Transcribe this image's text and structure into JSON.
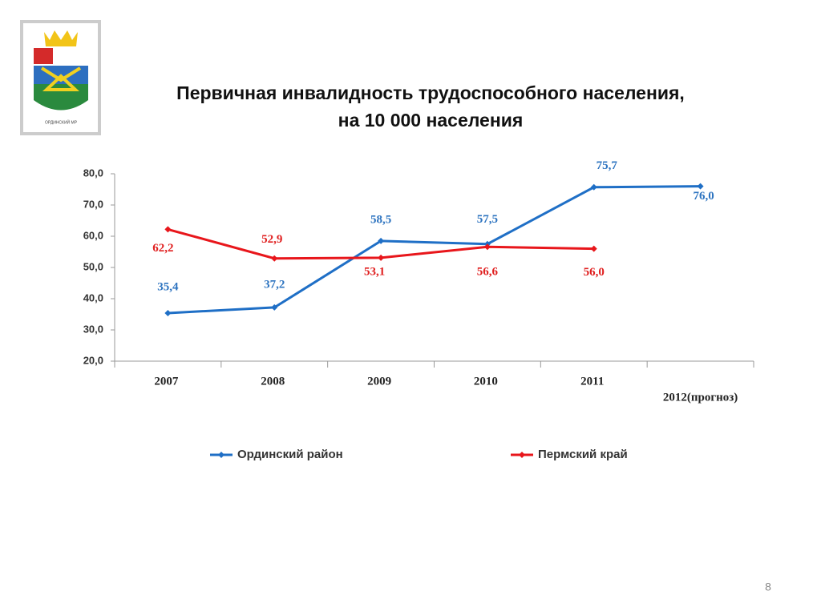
{
  "slide": {
    "logo_text": "ОРДИНСКИЙ МР",
    "page_number": 8
  },
  "chart_data": {
    "type": "line",
    "title": [
      "Первичная инвалидность трудоспособного населения,",
      "на 10 000 населения"
    ],
    "categories": [
      "2007",
      "2008",
      "2009",
      "2010",
      "2011",
      "2012(прогноз)"
    ],
    "series": [
      {
        "name": "Ординский район",
        "color": "#1f6fc6",
        "values": [
          35.4,
          37.2,
          58.5,
          57.5,
          75.7,
          76.0
        ],
        "value_labels": [
          "35,4",
          "37,2",
          "58,5",
          "57,5",
          "75,7",
          "76,0"
        ]
      },
      {
        "name": "Пермский край",
        "color": "#e8161b",
        "values": [
          62.2,
          52.9,
          53.1,
          56.6,
          56.0,
          null
        ],
        "value_labels": [
          "62,2",
          "52,9",
          "53,1",
          "56,6",
          "56,0",
          null
        ]
      }
    ],
    "ylim": [
      20,
      80
    ],
    "yticks": [
      {
        "value": 20,
        "label": "20,0"
      },
      {
        "value": 30,
        "label": "30,0"
      },
      {
        "value": 40,
        "label": "40,0"
      },
      {
        "value": 50,
        "label": "50,0"
      },
      {
        "value": 60,
        "label": "60,0"
      },
      {
        "value": 70,
        "label": "70,0"
      },
      {
        "value": 80,
        "label": "80,0"
      }
    ],
    "legend": "bottom"
  }
}
